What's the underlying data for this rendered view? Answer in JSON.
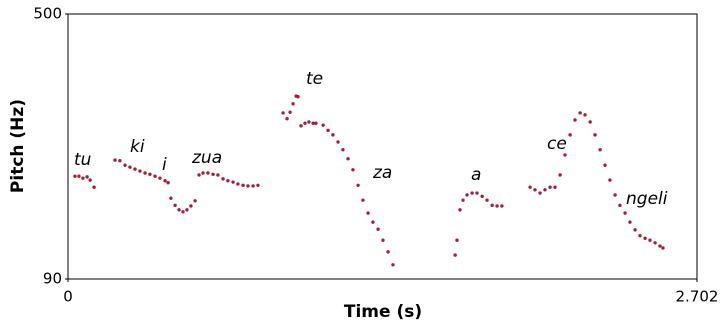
{
  "chart_data": {
    "type": "scatter",
    "x_label": "Time (s)",
    "y_label": "Pitch (Hz)",
    "xlim": [
      0,
      2.702
    ],
    "xticks": [
      0,
      2.702
    ],
    "ylim": [
      90,
      500
    ],
    "yticks": [
      90,
      500
    ],
    "color": "#a0203e",
    "annotations": [
      "tu",
      "ki",
      "i",
      "zua",
      "te",
      "za",
      "a",
      "ce",
      "ngeli"
    ],
    "x": [
      0.03,
      0.047,
      0.064,
      0.082,
      0.095,
      0.112,
      0.202,
      0.223,
      0.245,
      0.266,
      0.288,
      0.309,
      0.331,
      0.352,
      0.374,
      0.395,
      0.417,
      0.43,
      0.442,
      0.46,
      0.477,
      0.494,
      0.511,
      0.528,
      0.546,
      0.563,
      0.58,
      0.601,
      0.623,
      0.644,
      0.666,
      0.687,
      0.709,
      0.73,
      0.752,
      0.773,
      0.795,
      0.816,
      0.924,
      0.941,
      0.954,
      0.967,
      0.98,
      0.988,
      1.001,
      1.018,
      1.035,
      1.053,
      1.065,
      1.096,
      1.117,
      1.138,
      1.16,
      1.181,
      1.203,
      1.224,
      1.246,
      1.267,
      1.289,
      1.31,
      1.332,
      1.353,
      1.375,
      1.396,
      1.663,
      1.671,
      1.684,
      1.697,
      1.714,
      1.736,
      1.757,
      1.779,
      1.8,
      1.822,
      1.843,
      1.864,
      1.985,
      2.006,
      2.028,
      2.049,
      2.071,
      2.092,
      2.114,
      2.135,
      2.157,
      2.178,
      2.2,
      2.221,
      2.243,
      2.264,
      2.286,
      2.307,
      2.328,
      2.35,
      2.371,
      2.393,
      2.414,
      2.436,
      2.457,
      2.479,
      2.5,
      2.522,
      2.543,
      2.556
    ],
    "values": [
      249,
      249,
      246,
      248,
      243,
      232,
      274,
      273,
      266,
      263,
      260,
      257,
      254,
      252,
      249,
      246,
      242,
      239,
      215,
      204,
      197,
      194,
      197,
      203,
      211,
      251,
      254,
      254,
      252,
      251,
      245,
      242,
      240,
      237,
      235,
      234,
      234,
      235,
      347,
      338,
      348,
      361,
      373,
      372,
      327,
      331,
      333,
      331,
      331,
      328,
      320,
      313,
      302,
      290,
      276,
      259,
      235,
      212,
      192,
      178,
      167,
      150,
      132,
      112,
      127,
      150,
      197,
      212,
      220,
      223,
      223,
      218,
      212,
      204,
      203,
      203,
      232,
      228,
      223,
      228,
      232,
      232,
      251,
      282,
      313,
      336,
      347,
      344,
      333,
      313,
      290,
      266,
      243,
      220,
      204,
      192,
      178,
      166,
      157,
      153,
      150,
      146,
      141,
      138
    ]
  }
}
